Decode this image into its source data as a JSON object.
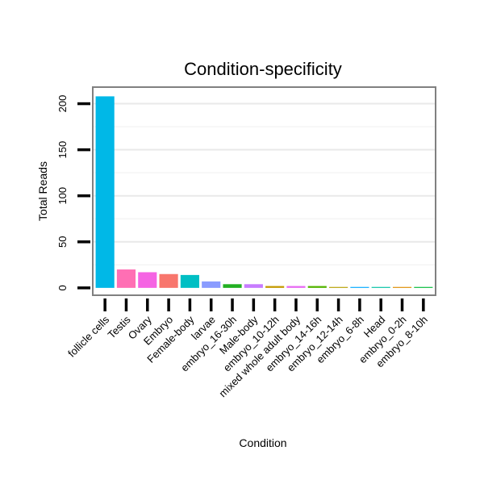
{
  "chart_data": {
    "type": "bar",
    "title": "Condition-specificity",
    "xlabel": "Condition",
    "ylabel": "Total Reads",
    "ylim": [
      -8,
      218
    ],
    "yticks": [
      0,
      50,
      100,
      150,
      200
    ],
    "grid": true,
    "legend": "none",
    "categories": [
      "follicle cells",
      "Testis",
      "Ovary",
      "Embryo",
      "Female-body",
      "larvae",
      "embryo_16-30h",
      "Male-body",
      "embryo_10-12h",
      "mixed whole adult body",
      "embryo_14-16h",
      "embryo_12-14h",
      "embryo_6-8h",
      "Head",
      "embryo_0-2h",
      "embryo_8-10h"
    ],
    "values": [
      208,
      20,
      17,
      15,
      14,
      7,
      4,
      4,
      2,
      2,
      2,
      1,
      1,
      1,
      1,
      1
    ],
    "colors": [
      "#00B8E7",
      "#FF6FB4",
      "#F564E3",
      "#F8766D",
      "#00BFC4",
      "#8A9CFF",
      "#22B022",
      "#C77CFF",
      "#C49A00",
      "#E76BF3",
      "#53B400",
      "#B79F00",
      "#00A9FF",
      "#00C1A3",
      "#DE8C00",
      "#00BA38"
    ]
  }
}
